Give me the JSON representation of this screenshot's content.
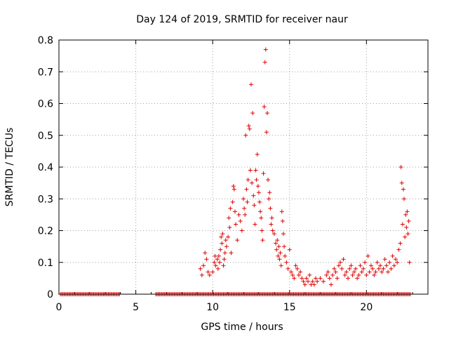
{
  "chart_data": {
    "type": "scatter",
    "title": "Day 124 of 2019, SRMTID for receiver naur",
    "xlabel": "GPS time / hours",
    "ylabel": "SRMTID / TECUs",
    "xlim": [
      0,
      24
    ],
    "ylim": [
      0,
      0.8
    ],
    "grid": true,
    "x_ticks": [
      0,
      5,
      10,
      15,
      20
    ],
    "x_tick_labels": [
      "0",
      "5",
      "10",
      "15",
      "20"
    ],
    "y_ticks": [
      0,
      0.1,
      0.2,
      0.3,
      0.4,
      0.5,
      0.6,
      0.7,
      0.8
    ],
    "y_tick_labels": [
      "0",
      "0.1",
      "0.2",
      "0.3",
      "0.4",
      "0.5",
      "0.6",
      "0.7",
      "0.8"
    ],
    "marker": "+",
    "marker_color": "#e00000",
    "series": [
      {
        "name": "SRMTID",
        "zero_ranges": [
          [
            0.1,
            4.0
          ],
          [
            6.3,
            22.9
          ]
        ],
        "zero_step": 0.08,
        "points": [
          [
            9.2,
            0.08
          ],
          [
            9.3,
            0.06
          ],
          [
            9.4,
            0.09
          ],
          [
            9.5,
            0.13
          ],
          [
            9.6,
            0.11
          ],
          [
            9.7,
            0.07
          ],
          [
            9.8,
            0.06
          ],
          [
            10.0,
            0.07
          ],
          [
            10.1,
            0.1
          ],
          [
            10.15,
            0.12
          ],
          [
            10.2,
            0.09
          ],
          [
            10.3,
            0.11
          ],
          [
            10.35,
            0.08
          ],
          [
            10.4,
            0.12
          ],
          [
            10.45,
            0.1
          ],
          [
            10.5,
            0.14
          ],
          [
            10.55,
            0.18
          ],
          [
            10.6,
            0.16
          ],
          [
            10.65,
            0.19
          ],
          [
            10.7,
            0.09
          ],
          [
            10.75,
            0.11
          ],
          [
            10.8,
            0.13
          ],
          [
            10.85,
            0.17
          ],
          [
            10.9,
            0.15
          ],
          [
            11.0,
            0.18
          ],
          [
            11.05,
            0.24
          ],
          [
            11.1,
            0.21
          ],
          [
            11.15,
            0.27
          ],
          [
            11.2,
            0.13
          ],
          [
            11.3,
            0.29
          ],
          [
            11.35,
            0.34
          ],
          [
            11.4,
            0.33
          ],
          [
            11.45,
            0.26
          ],
          [
            11.5,
            0.22
          ],
          [
            11.6,
            0.17
          ],
          [
            11.7,
            0.25
          ],
          [
            11.8,
            0.23
          ],
          [
            11.9,
            0.2
          ],
          [
            12.0,
            0.3
          ],
          [
            12.05,
            0.27
          ],
          [
            12.1,
            0.25
          ],
          [
            12.15,
            0.5
          ],
          [
            12.2,
            0.33
          ],
          [
            12.25,
            0.29
          ],
          [
            12.3,
            0.36
          ],
          [
            12.35,
            0.53
          ],
          [
            12.4,
            0.52
          ],
          [
            12.45,
            0.39
          ],
          [
            12.5,
            0.66
          ],
          [
            12.55,
            0.35
          ],
          [
            12.6,
            0.57
          ],
          [
            12.65,
            0.31
          ],
          [
            12.7,
            0.28
          ],
          [
            12.75,
            0.22
          ],
          [
            12.8,
            0.39
          ],
          [
            12.85,
            0.36
          ],
          [
            12.9,
            0.44
          ],
          [
            12.95,
            0.34
          ],
          [
            13.0,
            0.32
          ],
          [
            13.05,
            0.29
          ],
          [
            13.1,
            0.26
          ],
          [
            13.15,
            0.24
          ],
          [
            13.2,
            0.2
          ],
          [
            13.25,
            0.17
          ],
          [
            13.3,
            0.38
          ],
          [
            13.35,
            0.59
          ],
          [
            13.4,
            0.73
          ],
          [
            13.45,
            0.77
          ],
          [
            13.5,
            0.51
          ],
          [
            13.55,
            0.57
          ],
          [
            13.6,
            0.36
          ],
          [
            13.65,
            0.3
          ],
          [
            13.7,
            0.32
          ],
          [
            13.75,
            0.27
          ],
          [
            13.8,
            0.22
          ],
          [
            13.85,
            0.24
          ],
          [
            13.9,
            0.2
          ],
          [
            14.0,
            0.19
          ],
          [
            14.1,
            0.16
          ],
          [
            14.15,
            0.14
          ],
          [
            14.2,
            0.17
          ],
          [
            14.25,
            0.12
          ],
          [
            14.3,
            0.15
          ],
          [
            14.35,
            0.11
          ],
          [
            14.4,
            0.13
          ],
          [
            14.45,
            0.09
          ],
          [
            14.5,
            0.26
          ],
          [
            14.55,
            0.23
          ],
          [
            14.6,
            0.19
          ],
          [
            14.65,
            0.15
          ],
          [
            14.7,
            0.12
          ],
          [
            14.8,
            0.1
          ],
          [
            14.9,
            0.08
          ],
          [
            15.0,
            0.14
          ],
          [
            15.1,
            0.07
          ],
          [
            15.2,
            0.06
          ],
          [
            15.3,
            0.05
          ],
          [
            15.4,
            0.09
          ],
          [
            15.5,
            0.08
          ],
          [
            15.6,
            0.06
          ],
          [
            15.7,
            0.07
          ],
          [
            15.8,
            0.05
          ],
          [
            15.9,
            0.04
          ],
          [
            16.0,
            0.03
          ],
          [
            16.1,
            0.05
          ],
          [
            16.2,
            0.04
          ],
          [
            16.3,
            0.06
          ],
          [
            16.4,
            0.03
          ],
          [
            16.5,
            0.04
          ],
          [
            16.6,
            0.03
          ],
          [
            16.7,
            0.05
          ],
          [
            16.8,
            0.04
          ],
          [
            17.0,
            0.05
          ],
          [
            17.2,
            0.04
          ],
          [
            17.4,
            0.06
          ],
          [
            17.5,
            0.07
          ],
          [
            17.6,
            0.05
          ],
          [
            17.7,
            0.03
          ],
          [
            17.8,
            0.06
          ],
          [
            17.9,
            0.08
          ],
          [
            18.0,
            0.07
          ],
          [
            18.1,
            0.05
          ],
          [
            18.2,
            0.09
          ],
          [
            18.3,
            0.1
          ],
          [
            18.4,
            0.08
          ],
          [
            18.5,
            0.11
          ],
          [
            18.6,
            0.06
          ],
          [
            18.7,
            0.07
          ],
          [
            18.8,
            0.05
          ],
          [
            18.9,
            0.08
          ],
          [
            19.0,
            0.09
          ],
          [
            19.1,
            0.06
          ],
          [
            19.2,
            0.07
          ],
          [
            19.3,
            0.08
          ],
          [
            19.4,
            0.05
          ],
          [
            19.5,
            0.06
          ],
          [
            19.6,
            0.09
          ],
          [
            19.7,
            0.07
          ],
          [
            19.8,
            0.08
          ],
          [
            19.9,
            0.1
          ],
          [
            20.0,
            0.06
          ],
          [
            20.1,
            0.12
          ],
          [
            20.2,
            0.07
          ],
          [
            20.3,
            0.09
          ],
          [
            20.4,
            0.08
          ],
          [
            20.5,
            0.06
          ],
          [
            20.6,
            0.07
          ],
          [
            20.7,
            0.1
          ],
          [
            20.8,
            0.08
          ],
          [
            20.9,
            0.09
          ],
          [
            21.0,
            0.07
          ],
          [
            21.1,
            0.08
          ],
          [
            21.2,
            0.11
          ],
          [
            21.3,
            0.09
          ],
          [
            21.4,
            0.07
          ],
          [
            21.5,
            0.1
          ],
          [
            21.6,
            0.08
          ],
          [
            21.7,
            0.12
          ],
          [
            21.8,
            0.09
          ],
          [
            21.9,
            0.11
          ],
          [
            22.0,
            0.1
          ],
          [
            22.1,
            0.14
          ],
          [
            22.2,
            0.16
          ],
          [
            22.25,
            0.4
          ],
          [
            22.3,
            0.35
          ],
          [
            22.35,
            0.22
          ],
          [
            22.4,
            0.33
          ],
          [
            22.45,
            0.3
          ],
          [
            22.5,
            0.18
          ],
          [
            22.55,
            0.25
          ],
          [
            22.6,
            0.21
          ],
          [
            22.65,
            0.26
          ],
          [
            22.7,
            0.19
          ],
          [
            22.75,
            0.23
          ],
          [
            22.8,
            0.1
          ]
        ]
      }
    ]
  }
}
